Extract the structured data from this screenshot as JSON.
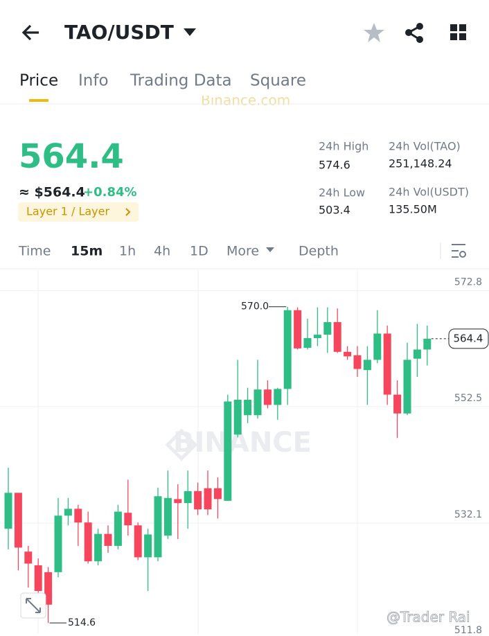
{
  "header": {
    "title": "TAO/USDT"
  },
  "tabs": [
    "Price",
    "Info",
    "Trading Data",
    "Square"
  ],
  "banner": "Binance.com",
  "price": {
    "last": "564.4",
    "approx": "≈ $564.4",
    "change": "+0.84%",
    "tag": "Layer 1 / Layer"
  },
  "stats": [
    {
      "label": "24h High",
      "value": "574.6"
    },
    {
      "label": "24h Vol(TAO)",
      "value": "251,148.24"
    },
    {
      "label": "24h Low",
      "value": "503.4"
    },
    {
      "label": "24h Vol(USDT)",
      "value": "135.50M"
    }
  ],
  "intervals": [
    "Time",
    "15m",
    "1h",
    "4h",
    "1D",
    "More",
    "Depth"
  ],
  "chart_data": {
    "type": "candlestick",
    "open": [
      531.1,
      537.4,
      527.1,
      524.7,
      523.5,
      523.5,
      533.4,
      534.6,
      532.2,
      525.4,
      530.2,
      528.1,
      533.9,
      531.7,
      526.1,
      526.1,
      529.9,
      536.3,
      535.6,
      537.7,
      538.2,
      538.2,
      536.0,
      547.6,
      551.0,
      551.0,
      555.5,
      552.8,
      555.6,
      569.4,
      562.8,
      564.5,
      565.1,
      567.3,
      562.1,
      561.5,
      558.9,
      560.7,
      565.3,
      554.6,
      551.3,
      560.9,
      562.5
    ],
    "high": [
      541.8,
      537.4,
      528.1,
      525.9,
      524.4,
      536.5,
      536.5,
      535.3,
      534.1,
      531.1,
      531.7,
      535.3,
      539.7,
      532.2,
      531.1,
      538.3,
      541.3,
      538.9,
      541.3,
      539.2,
      541.3,
      540.1,
      554.6,
      560.7,
      555.8,
      560.7,
      557.1,
      555.8,
      570.0,
      569.9,
      567.9,
      569.9,
      569.9,
      569.7,
      563.1,
      563.1,
      563.1,
      569.4,
      566.7,
      557.1,
      563.7,
      567.0,
      566.7
    ],
    "low": [
      527.5,
      523.8,
      520.8,
      517.2,
      514.6,
      522.6,
      531.7,
      528.1,
      525.0,
      524.7,
      526.9,
      527.5,
      529.9,
      525.6,
      520.2,
      525.4,
      529.3,
      529.3,
      531.1,
      533.5,
      533.5,
      532.9,
      536.0,
      547.1,
      549.6,
      550.4,
      552.2,
      550.2,
      552.8,
      562.5,
      562.5,
      563.1,
      561.9,
      561.9,
      560.7,
      557.7,
      552.8,
      560.1,
      552.8,
      547.0,
      551.0,
      557.7,
      559.7
    ],
    "close": [
      537.4,
      527.8,
      525.0,
      520.2,
      517.8,
      533.4,
      534.6,
      532.2,
      525.4,
      530.2,
      528.1,
      534.1,
      531.7,
      526.1,
      530.1,
      536.8,
      536.5,
      535.6,
      537.7,
      534.5,
      534.5,
      536.3,
      553.4,
      553.7,
      553.7,
      555.5,
      552.8,
      555.6,
      569.4,
      562.7,
      564.5,
      565.1,
      567.3,
      562.1,
      561.3,
      559.1,
      560.7,
      565.3,
      554.6,
      551.3,
      560.7,
      562.5,
      564.4
    ],
    "up_color": "#2ebd85",
    "down_color": "#f6465d",
    "ylim": [
      512.8,
      576.4
    ],
    "yticks": [
      572.8,
      552.5,
      532.1,
      511.8
    ],
    "grid": true,
    "max_label": {
      "value": 570.0,
      "label": "570.0"
    },
    "min_label": {
      "value": 514.6,
      "label": "514.6"
    },
    "last_label": {
      "value": 564.4,
      "label": "564.4"
    },
    "watermark": "BINANCE"
  },
  "credit": "@Trader Rai"
}
